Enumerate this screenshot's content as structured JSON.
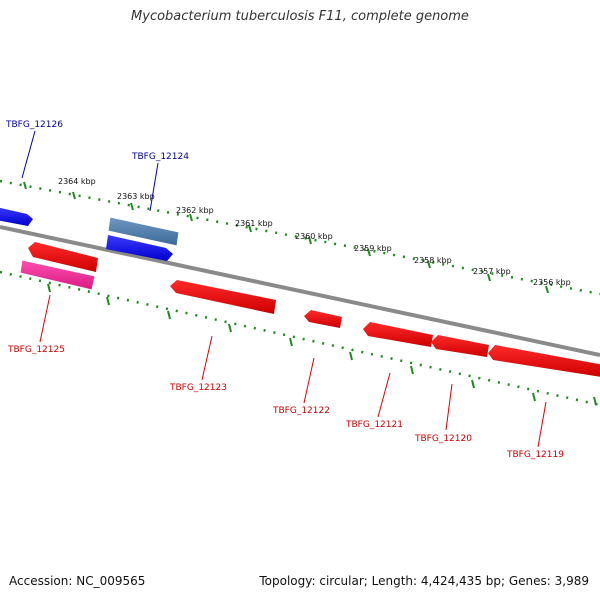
{
  "title": "Mycobacterium tuberculosis F11, complete genome",
  "footer": {
    "accession": "Accession: NC_009565",
    "summary": "Topology: circular; Length: 4,424,435 bp; Genes: 3,989"
  },
  "ruler_labels": [
    "2364 kbp",
    "2363 kbp",
    "2362 kbp",
    "2361 kbp",
    "2360 kbp",
    "2359 kbp",
    "2358 kbp",
    "2357 kbp",
    "2356 kbp"
  ],
  "genes": [
    {
      "id": "TBFG_12126",
      "strand": "forward",
      "color": "#0000ee",
      "label_color": "#000099"
    },
    {
      "id": "TBFG_12124",
      "strand": "forward",
      "color": "#0000ee",
      "label_color": "#000099"
    },
    {
      "id": "TBFG_12125",
      "strand": "reverse",
      "color": "#ee0000",
      "label_color": "#cc0000"
    },
    {
      "id": "TBFG_12123",
      "strand": "reverse",
      "color": "#ee0000",
      "label_color": "#cc0000"
    },
    {
      "id": "TBFG_12122",
      "strand": "reverse",
      "color": "#ee0000",
      "label_color": "#cc0000"
    },
    {
      "id": "TBFG_12121",
      "strand": "reverse",
      "color": "#ee0000",
      "label_color": "#cc0000"
    },
    {
      "id": "TBFG_12120",
      "strand": "reverse",
      "color": "#ee0000",
      "label_color": "#cc0000"
    },
    {
      "id": "TBFG_12119",
      "strand": "reverse",
      "color": "#ee0000",
      "label_color": "#cc0000"
    }
  ],
  "colors": {
    "backbone": "#808080",
    "ruler": "#1f8a1f",
    "forward_gene": "#0000ee",
    "forward_feature": "#4a7aa8",
    "reverse_gene": "#ee0000",
    "reverse_feature": "#ee2288"
  }
}
